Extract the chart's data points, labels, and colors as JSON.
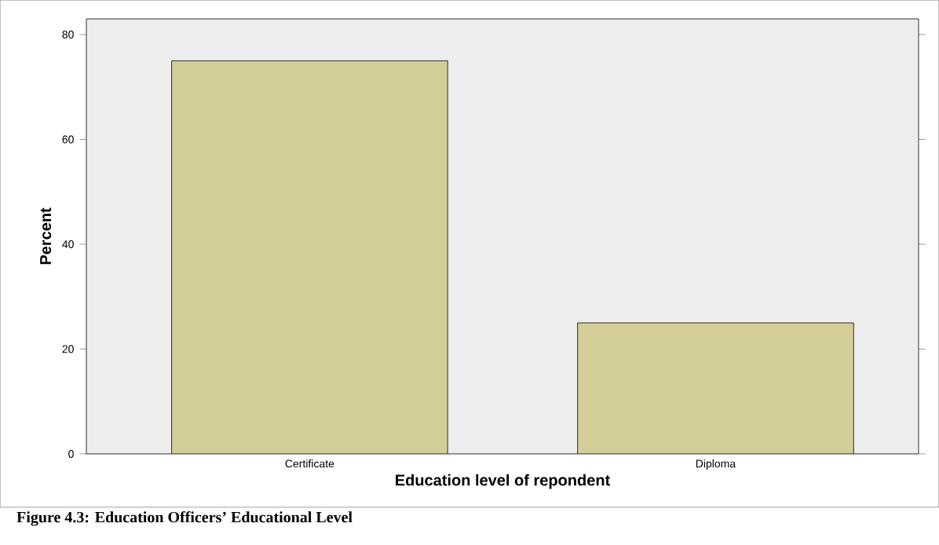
{
  "chart_data": {
    "type": "bar",
    "xlabel": "Education level of repondent",
    "ylabel": "Percent",
    "categories": [
      "Certificate",
      "Diploma"
    ],
    "values": [
      75,
      25
    ],
    "color": "#d3ce97",
    "ylim": [
      0,
      83
    ],
    "yticks": [
      0,
      20,
      40,
      60,
      80
    ],
    "grid": false,
    "annotations": [
      "Figure 4.3: Education Officers’ Educational Level"
    ]
  }
}
